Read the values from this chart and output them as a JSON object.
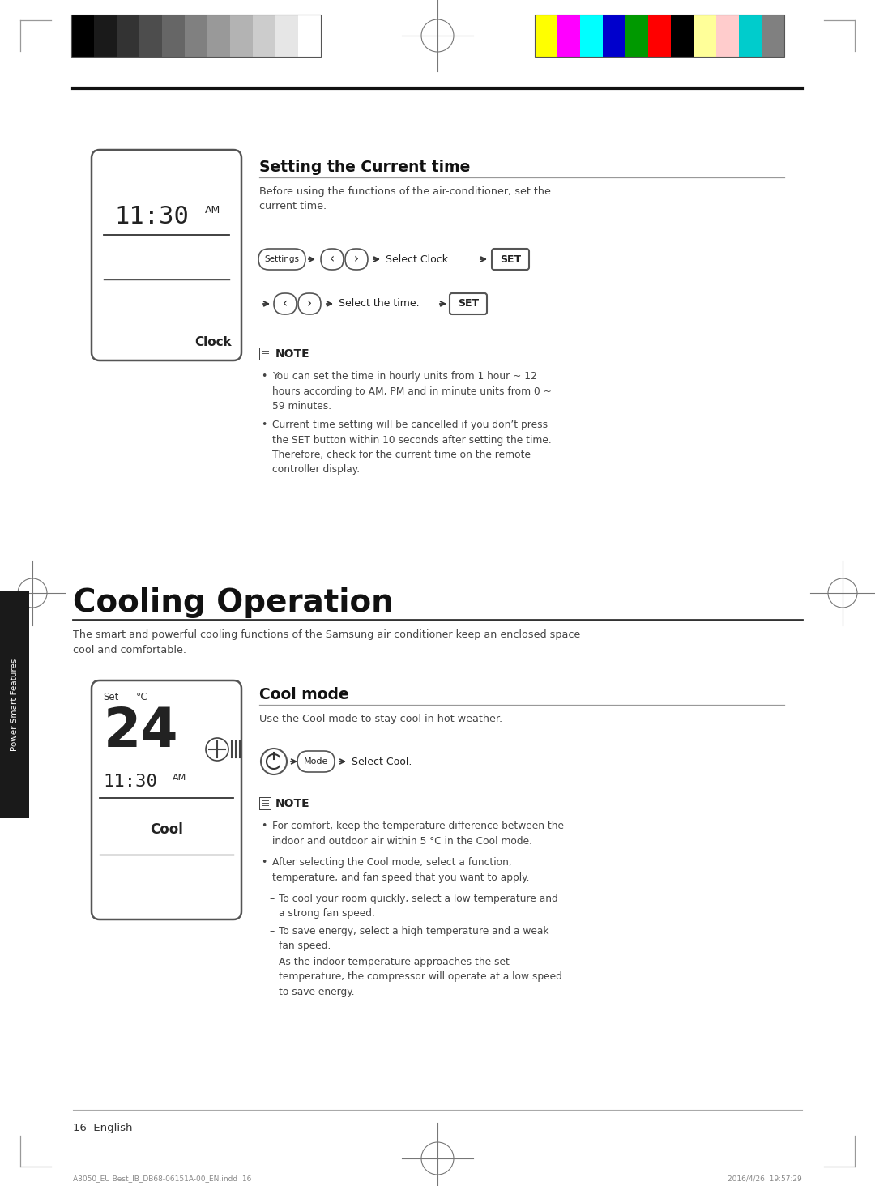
{
  "bg_color": "#ffffff",
  "page_number": "16",
  "footer_left": "A3050_EU Best_IB_DB68-06151A-00_EN.indd  16",
  "footer_right": "2016/4/26  19:57:29",
  "top_bar_colors_gray": [
    "#000000",
    "#1a1a1a",
    "#333333",
    "#4d4d4d",
    "#666666",
    "#808080",
    "#999999",
    "#b3b3b3",
    "#cccccc",
    "#e6e6e6",
    "#ffffff"
  ],
  "top_bar_colors_cmyk": [
    "#ffff00",
    "#ff00ff",
    "#00ffff",
    "#0000cc",
    "#009900",
    "#ff0000",
    "#000000",
    "#ffff99",
    "#ffcccc",
    "#00cccc",
    "#808080"
  ],
  "side_tab_text": "Power Smart Features",
  "section1_title": "Setting the Current time",
  "section1_intro": "Before using the functions of the air-conditioner, set the\ncurrent time.",
  "note_label": "NOTE",
  "note1": "You can set the time in hourly units from 1 hour ~ 12\nhours according to AM, PM and in minute units from 0 ~\n59 minutes.",
  "note2": "Current time setting will be cancelled if you don’t press\nthe SET button within 10 seconds after setting the time.\nTherefore, check for the current time on the remote\ncontroller display.",
  "section2_title": "Cooling Operation",
  "section2_intro": "The smart and powerful cooling functions of the Samsung air conditioner keep an enclosed space\ncool and comfortable.",
  "section3_title": "Cool mode",
  "section3_intro": "Use the Cool mode to stay cool in hot weather.",
  "note3": "For comfort, keep the temperature difference between the\nindoor and outdoor air within 5 °C in the Cool mode.",
  "note4": "After selecting the Cool mode, select a function,\ntemperature, and fan speed that you want to apply.",
  "note4a": "To cool your room quickly, select a low temperature and\na strong fan speed.",
  "note4b": "To save energy, select a high temperature and a weak\nfan speed.",
  "note4c": "As the indoor temperature approaches the set\ntemperature, the compressor will operate at a low speed\nto save energy.",
  "display1_time": "11:30",
  "display1_ampm": "AM",
  "display1_label": "Clock",
  "display2_set": "Set",
  "display2_temp": "24",
  "display2_deg": "°C",
  "display2_time": "11:30",
  "display2_ampm": "AM",
  "display2_label": "Cool",
  "select_clock": "Select Clock.",
  "select_time": "Select the time.",
  "select_cool": "Select Cool."
}
